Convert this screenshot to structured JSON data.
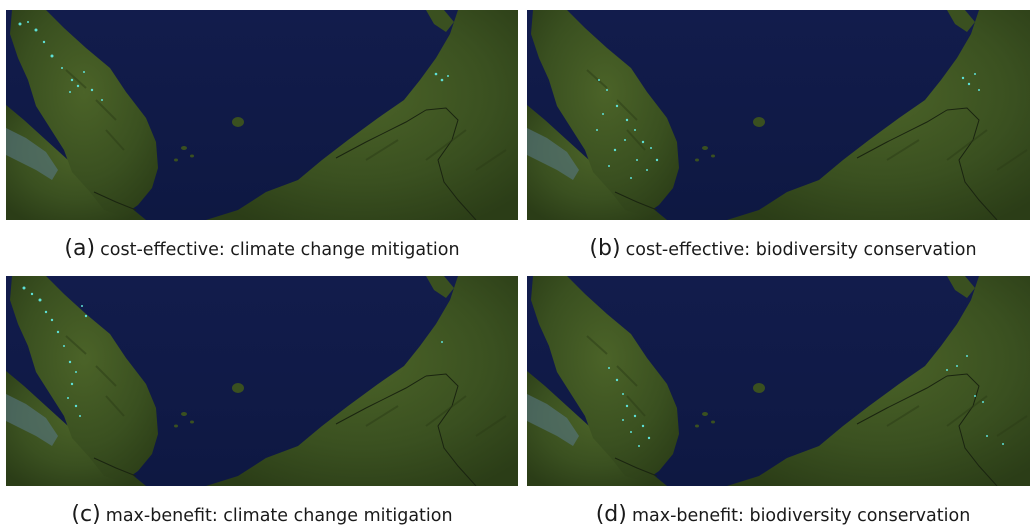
{
  "figure": {
    "panels": [
      {
        "id": "a",
        "label": "(a)",
        "caption": "cost-effective: climate change mitigation",
        "dot_color": "#5ee0d6"
      },
      {
        "id": "b",
        "label": "(b)",
        "caption": "cost-effective: biodiversity conservation",
        "dot_color": "#5ee0d6"
      },
      {
        "id": "c",
        "label": "(c)",
        "caption": "max-benefit: climate change mitigation",
        "dot_color": "#5ee0d6"
      },
      {
        "id": "d",
        "label": "(d)",
        "caption": "max-benefit: biodiversity conservation",
        "dot_color": "#5ee0d6"
      }
    ]
  },
  "colors": {
    "sea": "#101a46",
    "land": "#3b5220",
    "land_dark": "#2a3c16",
    "highlight": "#5ee0d6"
  }
}
